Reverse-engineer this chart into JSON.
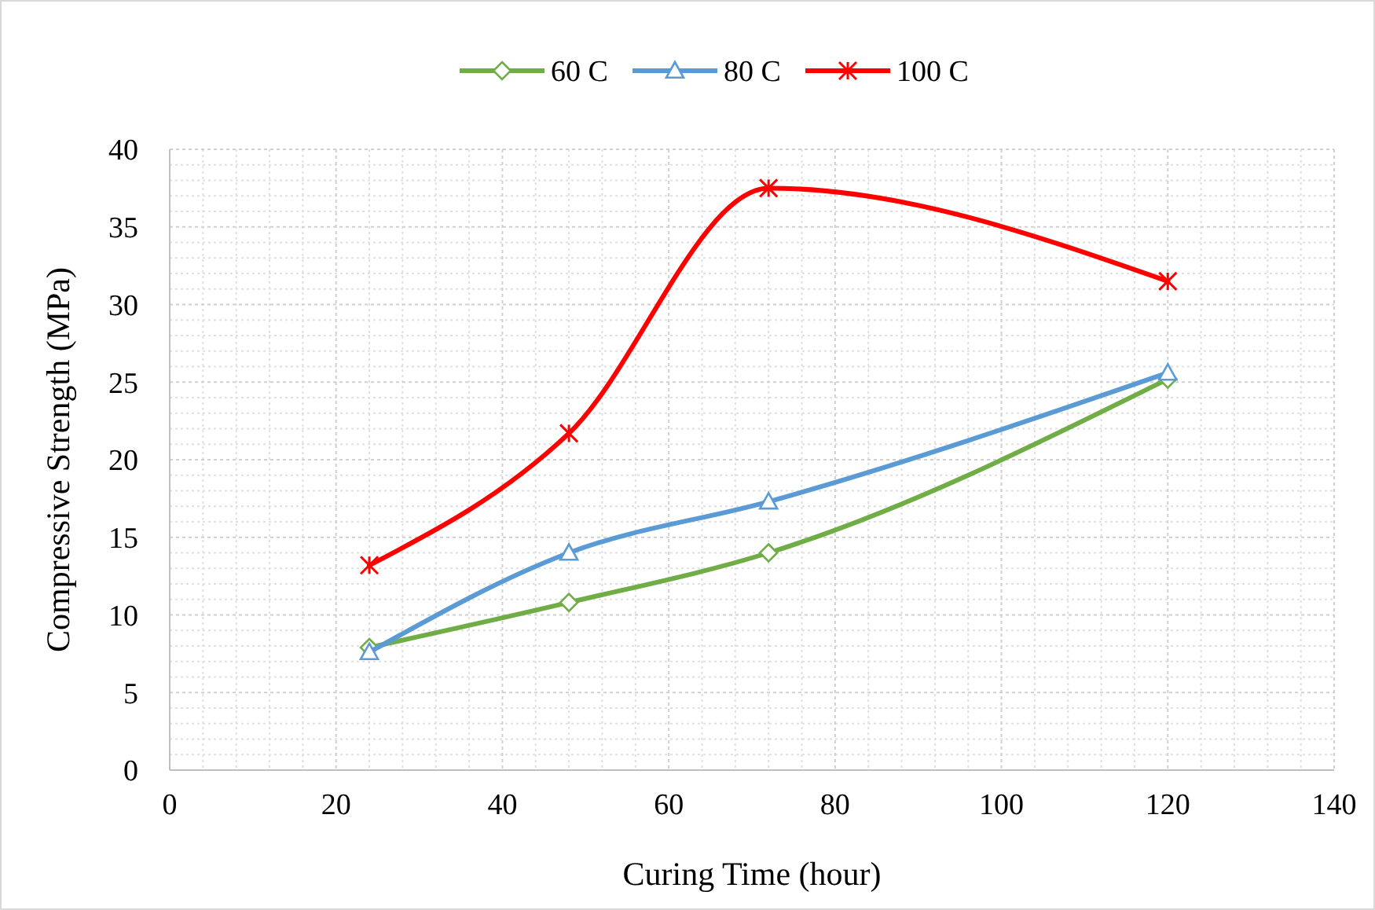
{
  "chart_data": {
    "type": "line",
    "xlabel": "Curing Time (hour)",
    "ylabel": "Compressive Strength (MPa)",
    "x": [
      24,
      48,
      72,
      120
    ],
    "xlim": [
      0,
      140
    ],
    "xticks": [
      0,
      20,
      40,
      60,
      80,
      100,
      120,
      140
    ],
    "ylim": [
      0,
      40
    ],
    "yticks": [
      0,
      5,
      10,
      15,
      20,
      25,
      30,
      35,
      40
    ],
    "grid": true,
    "legend": "top",
    "series": [
      {
        "name": "60 C",
        "color": "#70ad47",
        "marker": "diamond",
        "values": [
          7.9,
          10.8,
          14.0,
          25.2
        ]
      },
      {
        "name": "80 C",
        "color": "#5b9bd5",
        "marker": "triangle",
        "values": [
          7.6,
          14.0,
          17.3,
          25.6
        ]
      },
      {
        "name": "100 C",
        "color": "#ff0000",
        "marker": "cross",
        "values": [
          13.2,
          21.7,
          37.5,
          31.5
        ]
      }
    ]
  }
}
